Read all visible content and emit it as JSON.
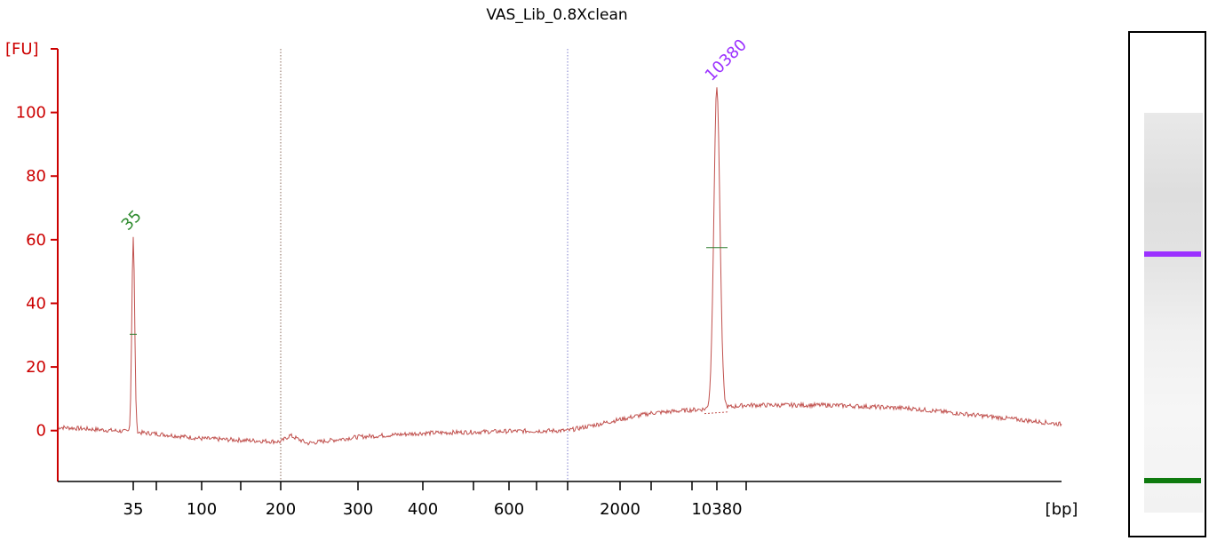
{
  "chart_data": {
    "type": "line",
    "title": "VAS_Lib_0.8Xclean",
    "ylabel": "[FU]",
    "xlabel": "[bp]",
    "ylim": [
      -16,
      120
    ],
    "y_ticks": [
      0,
      20,
      40,
      60,
      80,
      100
    ],
    "x_scale": "ladder",
    "x_tick_labels": [
      "35",
      "100",
      "200",
      "300",
      "400",
      "600",
      "2000",
      "10380"
    ],
    "minor_x_ticks": [
      "50",
      "150",
      "500",
      "700",
      "1000",
      "3000",
      "7000",
      "15000"
    ],
    "reference_lines": [
      "200",
      "1000"
    ],
    "series_color": "#c0504d",
    "markers": [
      {
        "label": "35",
        "bp": 35,
        "peak_fu": 61,
        "color": "#2e8b2e"
      },
      {
        "label": "10380",
        "bp": 10380,
        "peak_fu": 108,
        "color": "#9b30ff"
      }
    ],
    "baseline": [
      {
        "bp": 20,
        "fu": 1
      },
      {
        "bp": 30,
        "fu": 0
      },
      {
        "bp": 50,
        "fu": -1
      },
      {
        "bp": 100,
        "fu": -2.5
      },
      {
        "bp": 150,
        "fu": -3
      },
      {
        "bp": 200,
        "fu": -3.5
      },
      {
        "bp": 210,
        "fu": -1.5
      },
      {
        "bp": 230,
        "fu": -4
      },
      {
        "bp": 300,
        "fu": -2
      },
      {
        "bp": 400,
        "fu": -0.8
      },
      {
        "bp": 600,
        "fu": -0.2
      },
      {
        "bp": 1000,
        "fu": 0
      },
      {
        "bp": 1500,
        "fu": 2
      },
      {
        "bp": 2000,
        "fu": 3.5
      },
      {
        "bp": 3000,
        "fu": 5.5
      },
      {
        "bp": 7000,
        "fu": 6.5
      },
      {
        "bp": 10380,
        "fu": 7
      },
      {
        "bp": 15000,
        "fu": 8
      },
      {
        "bp": 25000,
        "fu": 8
      },
      {
        "bp": 40000,
        "fu": 7
      },
      {
        "bp": 70000,
        "fu": 4
      },
      {
        "bp": 100000,
        "fu": 2
      }
    ]
  },
  "gel": {
    "bands": [
      {
        "label": "10380",
        "position": 0.44,
        "color": "#9b30ff"
      },
      {
        "label": "35",
        "position": 0.89,
        "color": "#0e7a0e"
      }
    ]
  }
}
